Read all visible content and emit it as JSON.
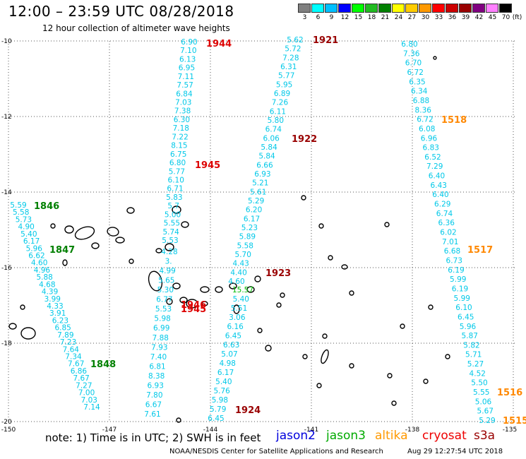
{
  "header": {
    "title": "12:00 – 23:59 UTC 08/28/2018",
    "subtitle": "12 hour collection of altimeter wave heights"
  },
  "color_scale": {
    "unit": "(ft)",
    "bins": [
      {
        "label": "3",
        "color": "#808080"
      },
      {
        "label": "6",
        "color": "#00ffff"
      },
      {
        "label": "9",
        "color": "#00bfff"
      },
      {
        "label": "12",
        "color": "#0000ff"
      },
      {
        "label": "15",
        "color": "#00ff00"
      },
      {
        "label": "18",
        "color": "#22bb22"
      },
      {
        "label": "21",
        "color": "#008000"
      },
      {
        "label": "24",
        "color": "#ffff00"
      },
      {
        "label": "27",
        "color": "#ffcc00"
      },
      {
        "label": "30",
        "color": "#ff9900"
      },
      {
        "label": "33",
        "color": "#ff0000"
      },
      {
        "label": "36",
        "color": "#cc0000"
      },
      {
        "label": "39",
        "color": "#990000"
      },
      {
        "label": "42",
        "color": "#800080"
      },
      {
        "label": "45",
        "color": "#ff80ff"
      },
      {
        "label": "70",
        "color": "#000000"
      }
    ]
  },
  "axes": {
    "latitudes": [
      "-10",
      "-12",
      "-14",
      "-16",
      "-18",
      "-20"
    ],
    "longitudes": [
      "-150",
      "-147",
      "-144",
      "-141",
      "-138",
      "-135"
    ]
  },
  "tracks": [
    {
      "name": "track-1944",
      "time_label": "1944",
      "label_color": "#dd0000",
      "value_color": "#00c8e8",
      "values": [
        "6.90",
        "7.10",
        "6.13",
        "6.95",
        "7.11",
        "7.57",
        "6.84",
        "7.03",
        "7.38",
        "6.30",
        "7.18",
        "7.22",
        "8.15",
        "6.75",
        "6.80",
        "5.77",
        "6.10",
        "6.71",
        "5.83",
        "5.7",
        "5.00",
        "5.55",
        "5.74",
        "5.53"
      ]
    },
    {
      "name": "track-1945",
      "time_label": "1945",
      "label_color": "#dd0000",
      "value_color": "#00c8e8",
      "values": [
        "4.28",
        "3.",
        "4.99",
        "5.65",
        "5.30",
        "6.77",
        "5.53",
        "5.98",
        "6.99",
        "7.88",
        "7.93",
        "7.40",
        "6.81",
        "8.38",
        "6.93",
        "7.80",
        "6.67",
        "7.61"
      ]
    },
    {
      "name": "track-1921",
      "time_label": "1921",
      "label_color": "#990000",
      "value_color": "#00c8e8",
      "values": [
        "5.62",
        "5.72",
        "7.28",
        "6.31",
        "5.77",
        "5.95",
        "6.89",
        "7.26",
        "6.11",
        "5.80",
        "6.74",
        "6.06",
        "5.84",
        "5.84",
        "6.66",
        "6.93",
        "5.21",
        "5.61",
        "5.29",
        "6.20",
        "6.17",
        "5.23",
        "5.89",
        "5.58",
        "5.70",
        "4.43",
        "4.40",
        "4.60"
      ]
    },
    {
      "name": "track-1923",
      "time_label": "1923",
      "label_color": "#990000",
      "value_color": "#00c8e8",
      "values": [
        "15.57",
        "5.40",
        "5.51",
        "3.06",
        "6.16",
        "6.45",
        "6.63",
        "5.07",
        "4.98",
        "6.17",
        "5.40",
        "5.76",
        "5.98",
        "5.79",
        "6.45"
      ]
    },
    {
      "name": "track-1518",
      "time_label": "1518",
      "label_color": "#ff8800",
      "value_color": "#00c8e8",
      "values": [
        "6.80",
        "7.36",
        "6.70",
        "6.72",
        "6.35",
        "6.34",
        "6.88",
        "8.36",
        "6.72",
        "6.08",
        "6.96",
        "6.83",
        "6.52",
        "7.29",
        "6.40",
        "6.43",
        "6.40",
        "6.29",
        "6.74",
        "6.36",
        "6.02",
        "7.01",
        "6.68",
        "6.73",
        "6.19",
        "5.99",
        "6.19",
        "5.99",
        "6.10",
        "6.45",
        "5.96",
        "5.87",
        "5.82",
        "5.71",
        "5.27",
        "4.52",
        "5.50",
        "5.55",
        "5.06",
        "5.67",
        "5.29"
      ]
    },
    {
      "name": "track-1846",
      "time_label": "1846",
      "label_color": "#008000",
      "value_color": "#00c8e8",
      "values": [
        "5.59",
        "5.58",
        "5.73",
        "4.90",
        "5.40",
        "6.17",
        "5.96",
        "6.62",
        "4.60",
        "4.96",
        "5.88",
        "4.68",
        "4.39",
        "3.99",
        "4.33",
        "3.91",
        "6.23",
        "6.85",
        "7.89",
        "7.23",
        "7.64",
        "7.34",
        "7.67",
        "6.86",
        "7.67",
        "7.27",
        "7.00",
        "7.03",
        "7.14"
      ]
    }
  ],
  "time_labels": [
    {
      "text": "1944",
      "color": "#dd0000"
    },
    {
      "text": "1921",
      "color": "#990000"
    },
    {
      "text": "1518",
      "color": "#ff8800"
    },
    {
      "text": "1922",
      "color": "#990000"
    },
    {
      "text": "1945",
      "color": "#dd0000"
    },
    {
      "text": "1846",
      "color": "#008000"
    },
    {
      "text": "1847",
      "color": "#008000"
    },
    {
      "text": "1517",
      "color": "#ff8800"
    },
    {
      "text": "1923",
      "color": "#990000"
    },
    {
      "text": "1946",
      "color": "#dd0000"
    },
    {
      "text": "1848",
      "color": "#008000"
    },
    {
      "text": "1924",
      "color": "#990000"
    },
    {
      "text": "1516",
      "color": "#ff8800"
    },
    {
      "text": "1515",
      "color": "#ff8800"
    }
  ],
  "footer": {
    "note": "note: 1) Time is in UTC; 2) SWH is in feet",
    "satellites": [
      {
        "name": "jason2",
        "color": "#0000dd"
      },
      {
        "name": "jason3",
        "color": "#00aa00"
      },
      {
        "name": "altika",
        "color": "#ff9900"
      },
      {
        "name": "cryosat",
        "color": "#ee0000"
      },
      {
        "name": "s3a",
        "color": "#990000"
      }
    ],
    "credit": "NOAA/NESDIS Center for Satellite Applications and Research",
    "timestamp": "Aug 29 12:27:54 UTC 2018"
  }
}
